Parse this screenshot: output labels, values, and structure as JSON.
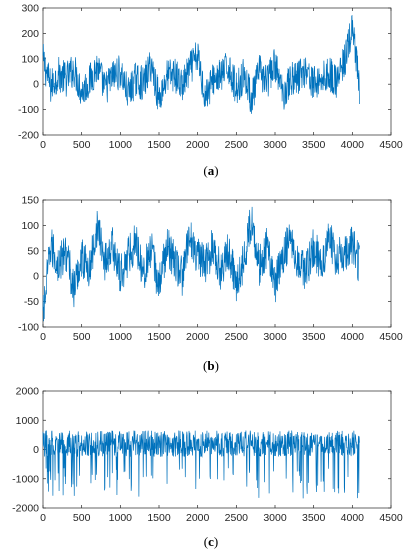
{
  "chart_data": [
    {
      "type": "line",
      "caption": "(a)",
      "caption_letter": "a",
      "xlim": [
        0,
        4500
      ],
      "ylim": [
        -200,
        300
      ],
      "xticks": [
        0,
        500,
        1000,
        1500,
        2000,
        2500,
        3000,
        3500,
        4000,
        4500
      ],
      "yticks": [
        -200,
        -100,
        0,
        100,
        200,
        300
      ],
      "n_points": 4096,
      "line_color": "#0072BD",
      "grid": false,
      "series": [
        {
          "x_step": 100,
          "values_sampled": [
            95,
            -10,
            40,
            20,
            60,
            -30,
            10,
            70,
            -20,
            30,
            50,
            -40,
            20,
            0,
            80,
            -60,
            30,
            40,
            -10,
            60,
            110,
            -50,
            20,
            30,
            70,
            -20,
            40,
            -60,
            50,
            10,
            80,
            -40,
            20,
            30,
            60,
            0,
            20,
            40,
            10,
            90,
            220,
            -40
          ]
        }
      ]
    },
    {
      "type": "line",
      "caption": "(b)",
      "caption_letter": "b",
      "xlim": [
        0,
        4500
      ],
      "ylim": [
        -100,
        150
      ],
      "xticks": [
        0,
        500,
        1000,
        1500,
        2000,
        2500,
        3000,
        3500,
        4000,
        4500
      ],
      "yticks": [
        -100,
        -50,
        0,
        50,
        100,
        150
      ],
      "n_points": 4096,
      "line_color": "#0072BD",
      "grid": false,
      "series": [
        {
          "x_step": 100,
          "values_sampled": [
            -80,
            60,
            20,
            50,
            -30,
            40,
            10,
            100,
            30,
            60,
            0,
            40,
            70,
            10,
            50,
            -20,
            60,
            30,
            0,
            80,
            40,
            20,
            60,
            10,
            50,
            -10,
            30,
            115,
            20,
            60,
            -20,
            40,
            80,
            30,
            10,
            60,
            20,
            80,
            30,
            50,
            60,
            20
          ]
        }
      ]
    },
    {
      "type": "line",
      "caption": "(c)",
      "caption_letter": "c",
      "xlim": [
        0,
        4500
      ],
      "ylim": [
        -2000,
        2000
      ],
      "xticks": [
        0,
        500,
        1000,
        1500,
        2000,
        2500,
        3000,
        3500,
        4000,
        4500
      ],
      "yticks": [
        -2000,
        -1000,
        0,
        1000,
        2000
      ],
      "n_points": 4096,
      "line_color": "#0072BD",
      "grid": false,
      "series": [
        {
          "x_step": 100,
          "values_sampled": [
            300,
            600,
            -1300,
            400,
            700,
            -1500,
            200,
            500,
            -1100,
            800,
            300,
            -1400,
            600,
            200,
            -1600,
            500,
            700,
            -1200,
            300,
            800,
            -1500,
            400,
            600,
            -1300,
            200,
            700,
            -1400,
            500,
            300,
            -1700,
            800,
            400,
            -1200,
            600,
            900,
            -1500,
            300,
            700,
            -1300,
            500,
            800,
            200
          ]
        }
      ]
    }
  ]
}
